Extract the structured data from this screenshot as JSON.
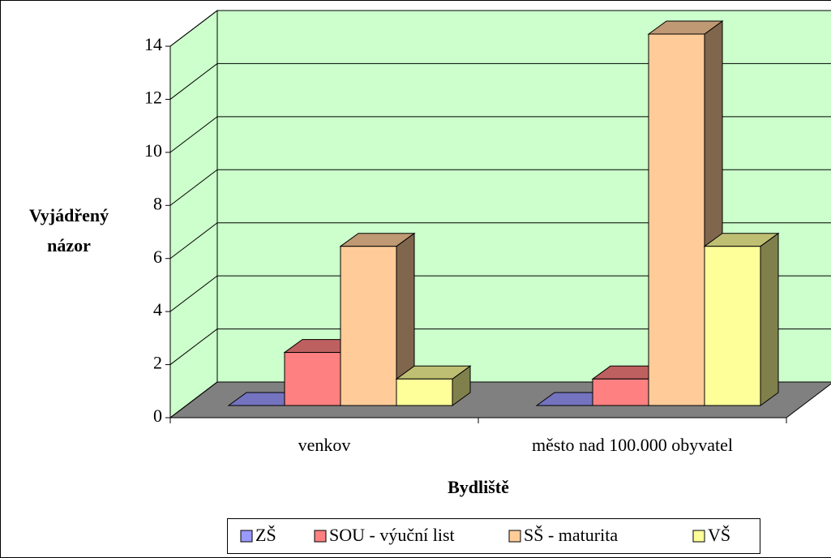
{
  "chart_data": {
    "type": "bar3d",
    "xlabel": "Bydliště",
    "ylabel": [
      "Vyjádřený",
      "názor"
    ],
    "categories": [
      "venkov",
      "město nad 100.000 obyvatel"
    ],
    "series": [
      {
        "name": "ZŠ",
        "color": "#9999ff",
        "values": [
          0,
          0
        ]
      },
      {
        "name": "SOU - výuční list",
        "color": "#ff8080",
        "values": [
          2,
          1
        ]
      },
      {
        "name": "SŠ - maturita",
        "color": "#ffcc99",
        "values": [
          6,
          14
        ]
      },
      {
        "name": "VŠ",
        "color": "#ffff99",
        "values": [
          1,
          6
        ]
      }
    ],
    "ylim": [
      0,
      14
    ],
    "yticks": [
      0,
      2,
      4,
      6,
      8,
      10,
      12,
      14
    ],
    "grid": true,
    "wall_color": "#ccffcc",
    "floor_color": "#808080",
    "legend": "bottom"
  }
}
